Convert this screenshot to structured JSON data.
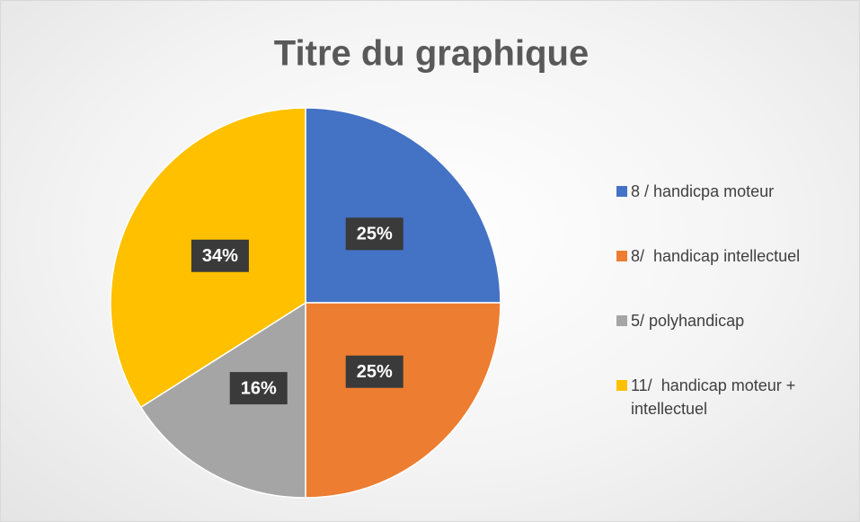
{
  "chart_data": {
    "type": "pie",
    "title": "Titre du graphique",
    "categories": [
      "8 / handicpa moteur",
      "8/  handicap intellectuel",
      "5/ polyhandicap",
      "11/  handicap moteur + intellectuel"
    ],
    "values": [
      25,
      25,
      16,
      34
    ],
    "value_labels": [
      "25%",
      "25%",
      "16%",
      "34%"
    ],
    "colors": [
      "#4472c4",
      "#ed7d31",
      "#a5a5a5",
      "#ffc000"
    ],
    "legend": "right"
  }
}
